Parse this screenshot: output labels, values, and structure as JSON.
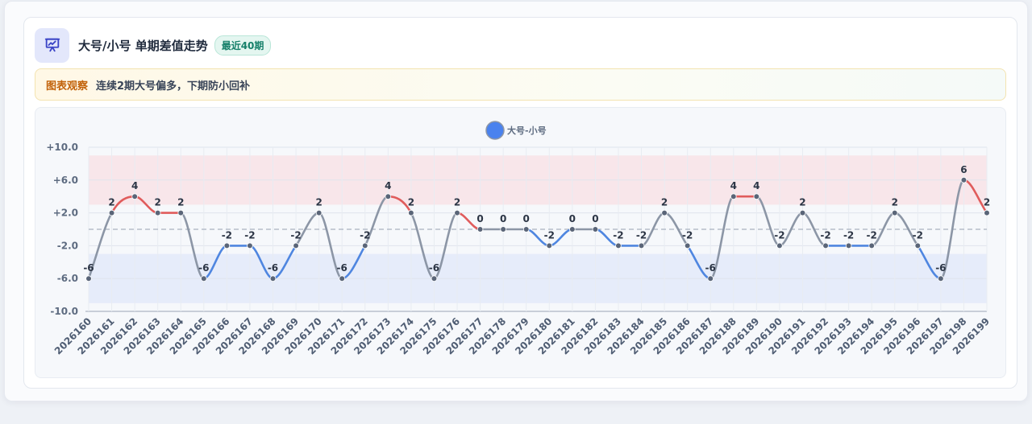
{
  "header": {
    "icon": "presentation-chart-icon",
    "title": "大号/小号 单期差值走势",
    "badge": "最近40期"
  },
  "note": {
    "label": "图表观察",
    "text": "连续2期大号偏多，下期防小回补"
  },
  "colors": {
    "positive": "#e05c5c",
    "negative": "#4f86e0",
    "neutral": "#8c96a6",
    "marker": "#5a6578",
    "legend": "#4a82ee",
    "high_band": "#f8e6ea",
    "low_band": "#e6ecfa"
  },
  "chart_data": {
    "type": "line",
    "title": "",
    "xlabel": "",
    "ylabel": "",
    "ylim": [
      -10,
      10
    ],
    "yticks": [
      "+10.0",
      "+6.0",
      "+2.0",
      "-2.0",
      "-6.0",
      "-10.0"
    ],
    "grid": true,
    "legend_position": "top-center",
    "bands": [
      {
        "from": 3,
        "to": 9,
        "color": "#f8e6ea"
      },
      {
        "from": -9,
        "to": -3,
        "color": "#e6ecfa"
      }
    ],
    "reference_line": 0,
    "x": [
      "2026160",
      "2026161",
      "2026162",
      "2026163",
      "2026164",
      "2026165",
      "2026166",
      "2026167",
      "2026168",
      "2026169",
      "2026170",
      "2026171",
      "2026172",
      "2026173",
      "2026174",
      "2026175",
      "2026176",
      "2026177",
      "2026178",
      "2026179",
      "2026180",
      "2026181",
      "2026182",
      "2026183",
      "2026184",
      "2026185",
      "2026186",
      "2026187",
      "2026188",
      "2026189",
      "2026190",
      "2026191",
      "2026192",
      "2026193",
      "2026194",
      "2026195",
      "2026196",
      "2026197",
      "2026198",
      "2026199"
    ],
    "series": [
      {
        "name": "大号-小号",
        "values": [
          -6,
          2,
          4,
          2,
          2,
          -6,
          -2,
          -2,
          -6,
          -2,
          2,
          -6,
          -2,
          4,
          2,
          -6,
          2,
          0,
          0,
          0,
          -2,
          0,
          0,
          -2,
          -2,
          2,
          -2,
          -6,
          4,
          4,
          -2,
          2,
          -2,
          -2,
          -2,
          2,
          -2,
          -6,
          6,
          2
        ]
      }
    ]
  }
}
